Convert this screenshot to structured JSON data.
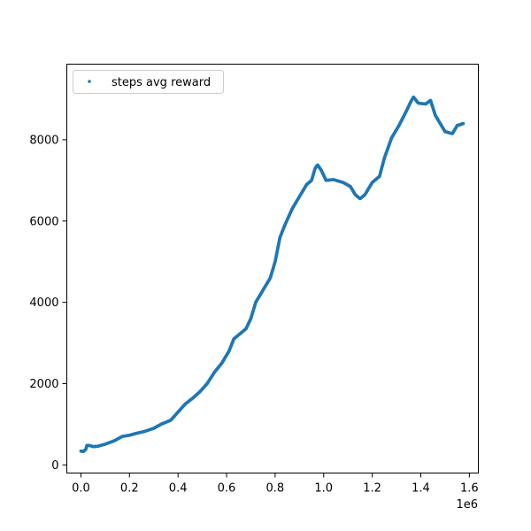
{
  "chart_data": {
    "type": "scatter",
    "title": "",
    "xlabel": "",
    "ylabel": "",
    "x_offset_label": "1e6",
    "xlim": [
      -58000,
      1637000
    ],
    "ylim": [
      -200,
      9860
    ],
    "x_ticks": [
      0,
      200000,
      400000,
      600000,
      800000,
      1000000,
      1200000,
      1400000,
      1600000
    ],
    "x_tick_labels": [
      "0.0",
      "0.2",
      "0.4",
      "0.6",
      "0.8",
      "1.0",
      "1.2",
      "1.4",
      "1.6"
    ],
    "y_ticks": [
      0,
      2000,
      4000,
      6000,
      8000
    ],
    "y_tick_labels": [
      "0",
      "2000",
      "4000",
      "6000",
      "8000"
    ],
    "grid": false,
    "legend": {
      "position": "top-left",
      "entries": [
        "steps avg reward"
      ]
    },
    "colors": {
      "series": "#1f77b4"
    },
    "series": [
      {
        "name": "steps avg reward",
        "points": [
          [
            0,
            340
          ],
          [
            10000,
            330
          ],
          [
            20000,
            380
          ],
          [
            25000,
            480
          ],
          [
            35000,
            480
          ],
          [
            50000,
            450
          ],
          [
            70000,
            460
          ],
          [
            100000,
            510
          ],
          [
            140000,
            600
          ],
          [
            170000,
            700
          ],
          [
            200000,
            730
          ],
          [
            230000,
            780
          ],
          [
            260000,
            820
          ],
          [
            300000,
            900
          ],
          [
            330000,
            1000
          ],
          [
            370000,
            1100
          ],
          [
            400000,
            1300
          ],
          [
            430000,
            1500
          ],
          [
            460000,
            1640
          ],
          [
            490000,
            1800
          ],
          [
            520000,
            2000
          ],
          [
            550000,
            2280
          ],
          [
            580000,
            2500
          ],
          [
            610000,
            2800
          ],
          [
            630000,
            3100
          ],
          [
            650000,
            3200
          ],
          [
            680000,
            3350
          ],
          [
            700000,
            3600
          ],
          [
            720000,
            4000
          ],
          [
            750000,
            4300
          ],
          [
            780000,
            4600
          ],
          [
            800000,
            5000
          ],
          [
            820000,
            5600
          ],
          [
            840000,
            5900
          ],
          [
            870000,
            6300
          ],
          [
            900000,
            6600
          ],
          [
            930000,
            6900
          ],
          [
            950000,
            7000
          ],
          [
            965000,
            7300
          ],
          [
            975000,
            7380
          ],
          [
            990000,
            7250
          ],
          [
            1010000,
            7000
          ],
          [
            1040000,
            7020
          ],
          [
            1080000,
            6950
          ],
          [
            1110000,
            6850
          ],
          [
            1130000,
            6650
          ],
          [
            1150000,
            6550
          ],
          [
            1170000,
            6650
          ],
          [
            1200000,
            6950
          ],
          [
            1230000,
            7100
          ],
          [
            1250000,
            7550
          ],
          [
            1280000,
            8050
          ],
          [
            1310000,
            8350
          ],
          [
            1340000,
            8700
          ],
          [
            1360000,
            8950
          ],
          [
            1370000,
            9050
          ],
          [
            1390000,
            8900
          ],
          [
            1420000,
            8880
          ],
          [
            1440000,
            8970
          ],
          [
            1460000,
            8600
          ],
          [
            1480000,
            8400
          ],
          [
            1500000,
            8200
          ],
          [
            1530000,
            8150
          ],
          [
            1550000,
            8350
          ],
          [
            1575000,
            8400
          ]
        ]
      }
    ]
  }
}
